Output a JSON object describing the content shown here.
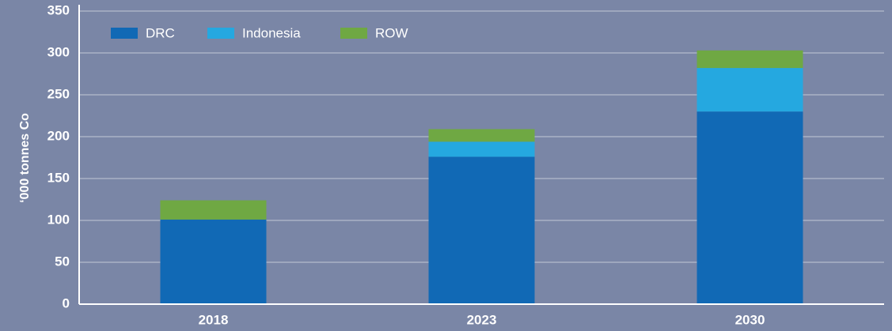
{
  "chart_data": {
    "type": "stacked_bar",
    "y_label": "‘000 tonnes Co",
    "categories": [
      "2018",
      "2023",
      "2030"
    ],
    "series": [
      {
        "name": "DRC",
        "color": "#1169b5",
        "values": [
          101,
          176,
          230
        ]
      },
      {
        "name": "Indonesia",
        "color": "#25a8e0",
        "values": [
          0,
          18,
          52
        ]
      },
      {
        "name": "ROW",
        "color": "#6fa843",
        "values": [
          23,
          15,
          21
        ]
      }
    ],
    "ylim": [
      0,
      350
    ],
    "yticks": [
      0,
      50,
      100,
      150,
      200,
      250,
      300,
      350
    ],
    "grid": true,
    "legend": "top-left"
  }
}
